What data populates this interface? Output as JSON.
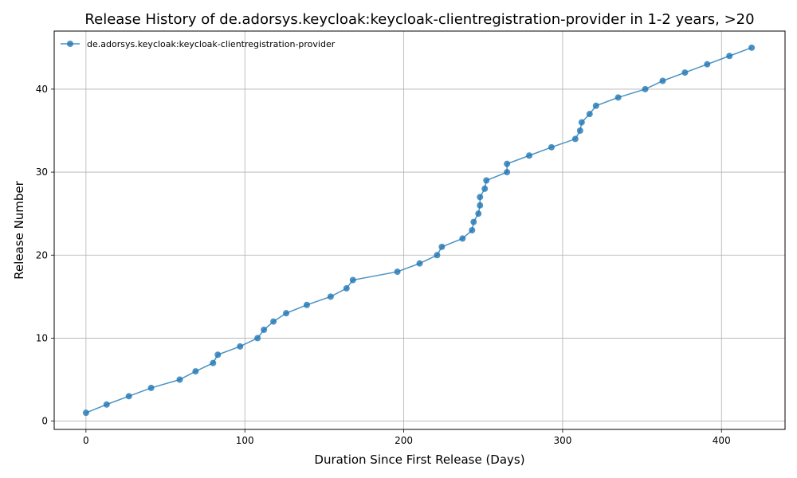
{
  "chart_data": {
    "type": "line",
    "title": "Release History of de.adorsys.keycloak:keycloak-clientregistration-provider in 1-2 years, >20",
    "xlabel": "Duration Since First Release (Days)",
    "ylabel": "Release Number",
    "xlim": [
      -20,
      440
    ],
    "ylim": [
      -1,
      47
    ],
    "xticks": [
      0,
      100,
      200,
      300,
      400
    ],
    "yticks": [
      0,
      10,
      20,
      30,
      40
    ],
    "grid": true,
    "legend_position": "top-left",
    "series": [
      {
        "name": "de.adorsys.keycloak:keycloak-clientregistration-provider",
        "color": "#1f77b4",
        "marker": "circle",
        "points": [
          [
            0,
            1
          ],
          [
            13,
            2
          ],
          [
            27,
            3
          ],
          [
            41,
            4
          ],
          [
            59,
            5
          ],
          [
            69,
            6
          ],
          [
            80,
            7
          ],
          [
            83,
            8
          ],
          [
            97,
            9
          ],
          [
            108,
            10
          ],
          [
            112,
            11
          ],
          [
            118,
            12
          ],
          [
            126,
            13
          ],
          [
            139,
            14
          ],
          [
            154,
            15
          ],
          [
            164,
            16
          ],
          [
            168,
            17
          ],
          [
            196,
            18
          ],
          [
            210,
            19
          ],
          [
            221,
            20
          ],
          [
            224,
            21
          ],
          [
            237,
            22
          ],
          [
            243,
            23
          ],
          [
            244,
            24
          ],
          [
            247,
            25
          ],
          [
            248,
            26
          ],
          [
            248,
            27
          ],
          [
            251,
            28
          ],
          [
            252,
            29
          ],
          [
            265,
            30
          ],
          [
            265,
            31
          ],
          [
            279,
            32
          ],
          [
            293,
            33
          ],
          [
            308,
            34
          ],
          [
            311,
            35
          ],
          [
            312,
            36
          ],
          [
            317,
            37
          ],
          [
            321,
            38
          ],
          [
            335,
            39
          ],
          [
            352,
            40
          ],
          [
            363,
            41
          ],
          [
            377,
            42
          ],
          [
            391,
            43
          ],
          [
            405,
            44
          ],
          [
            419,
            45
          ]
        ]
      }
    ]
  }
}
